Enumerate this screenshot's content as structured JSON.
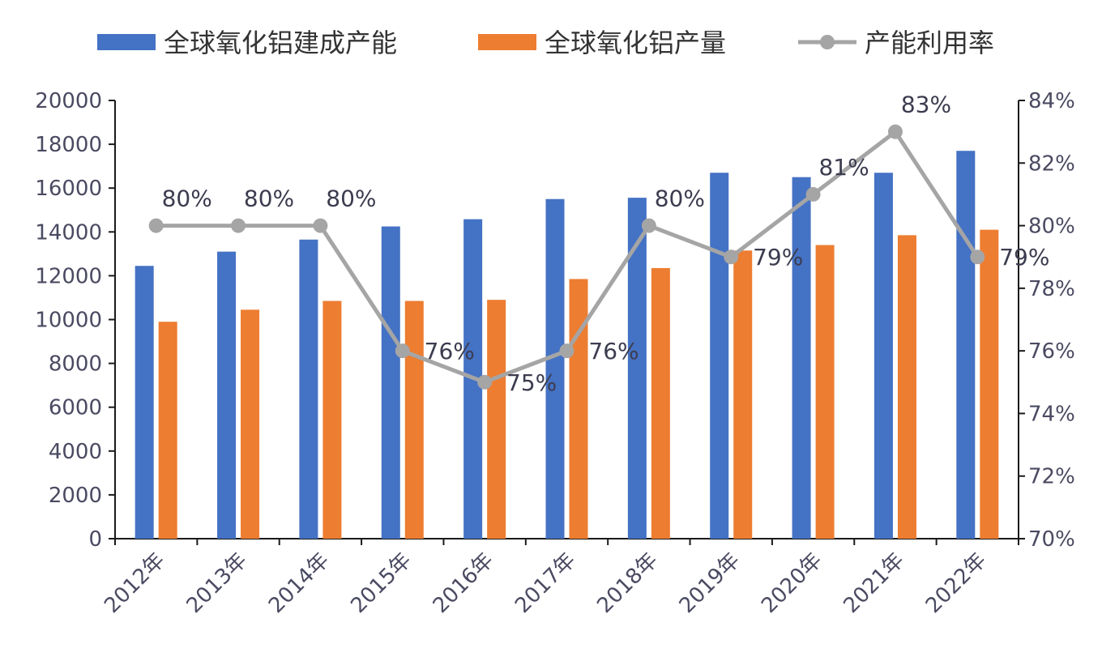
{
  "chart_data": {
    "type": "bar",
    "categories": [
      "2012年",
      "2013年",
      "2014年",
      "2015年",
      "2016年",
      "2017年",
      "2018年",
      "2019年",
      "2020年",
      "2021年",
      "2022年"
    ],
    "series": [
      {
        "name": "全球氧化铝建成产能",
        "kind": "bar",
        "axis": "left",
        "color": "#4472C4",
        "values": [
          12450,
          13100,
          13650,
          14250,
          14580,
          15500,
          15560,
          16700,
          16500,
          16700,
          17700
        ]
      },
      {
        "name": "全球氧化铝产量",
        "kind": "bar",
        "axis": "left",
        "color": "#ED7D31",
        "values": [
          9900,
          10450,
          10850,
          10850,
          10900,
          11850,
          12350,
          13150,
          13400,
          13850,
          14100
        ]
      },
      {
        "name": "产能利用率",
        "kind": "line",
        "axis": "right",
        "color": "#A5A5A5",
        "values": [
          80,
          80,
          80,
          76,
          75,
          76,
          80,
          79,
          81,
          83,
          79
        ],
        "labels": [
          "80%",
          "80%",
          "80%",
          "76%",
          "75%",
          "76%",
          "80%",
          "79%",
          "81%",
          "83%",
          "79%"
        ]
      }
    ],
    "y_left": {
      "min": 0,
      "max": 20000,
      "step": 2000,
      "ticks": [
        "0",
        "2000",
        "4000",
        "6000",
        "8000",
        "10000",
        "12000",
        "14000",
        "16000",
        "18000",
        "20000"
      ]
    },
    "y_right": {
      "min": 70,
      "max": 84,
      "step": 2,
      "ticks": [
        "70%",
        "72%",
        "74%",
        "76%",
        "78%",
        "80%",
        "82%",
        "84%"
      ]
    },
    "legend_position": "top",
    "grid": false,
    "title": "",
    "xlabel": "",
    "ylabel": ""
  }
}
